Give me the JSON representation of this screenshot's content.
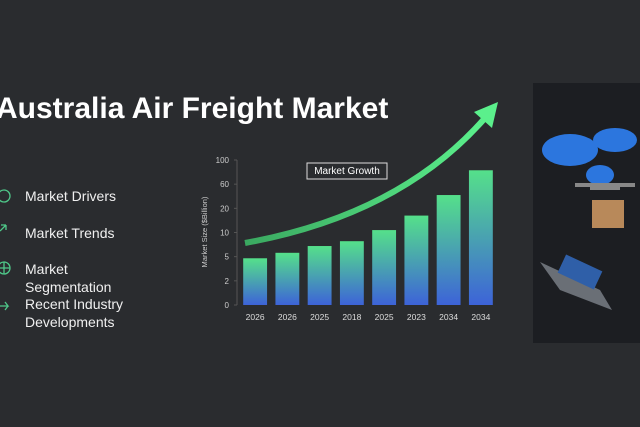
{
  "title": "Australia Air Freight Market",
  "items": [
    "Market Drivers",
    "Market Trends",
    "Market Segmentation",
    "Recent Industry Developments"
  ],
  "chart_data": {
    "type": "bar",
    "annotation": "Market Growth",
    "y_label": "Market Size ($Billion)",
    "categories": [
      "2026",
      "2026",
      "2025",
      "2018",
      "2025",
      "2023",
      "2034",
      "2034"
    ],
    "values": [
      4.8,
      5.8,
      7.2,
      8.2,
      11,
      17,
      42,
      83
    ],
    "ylim": [
      0,
      100
    ],
    "yticks": [
      0,
      2,
      5,
      10,
      20,
      60,
      100
    ],
    "grid": false
  }
}
